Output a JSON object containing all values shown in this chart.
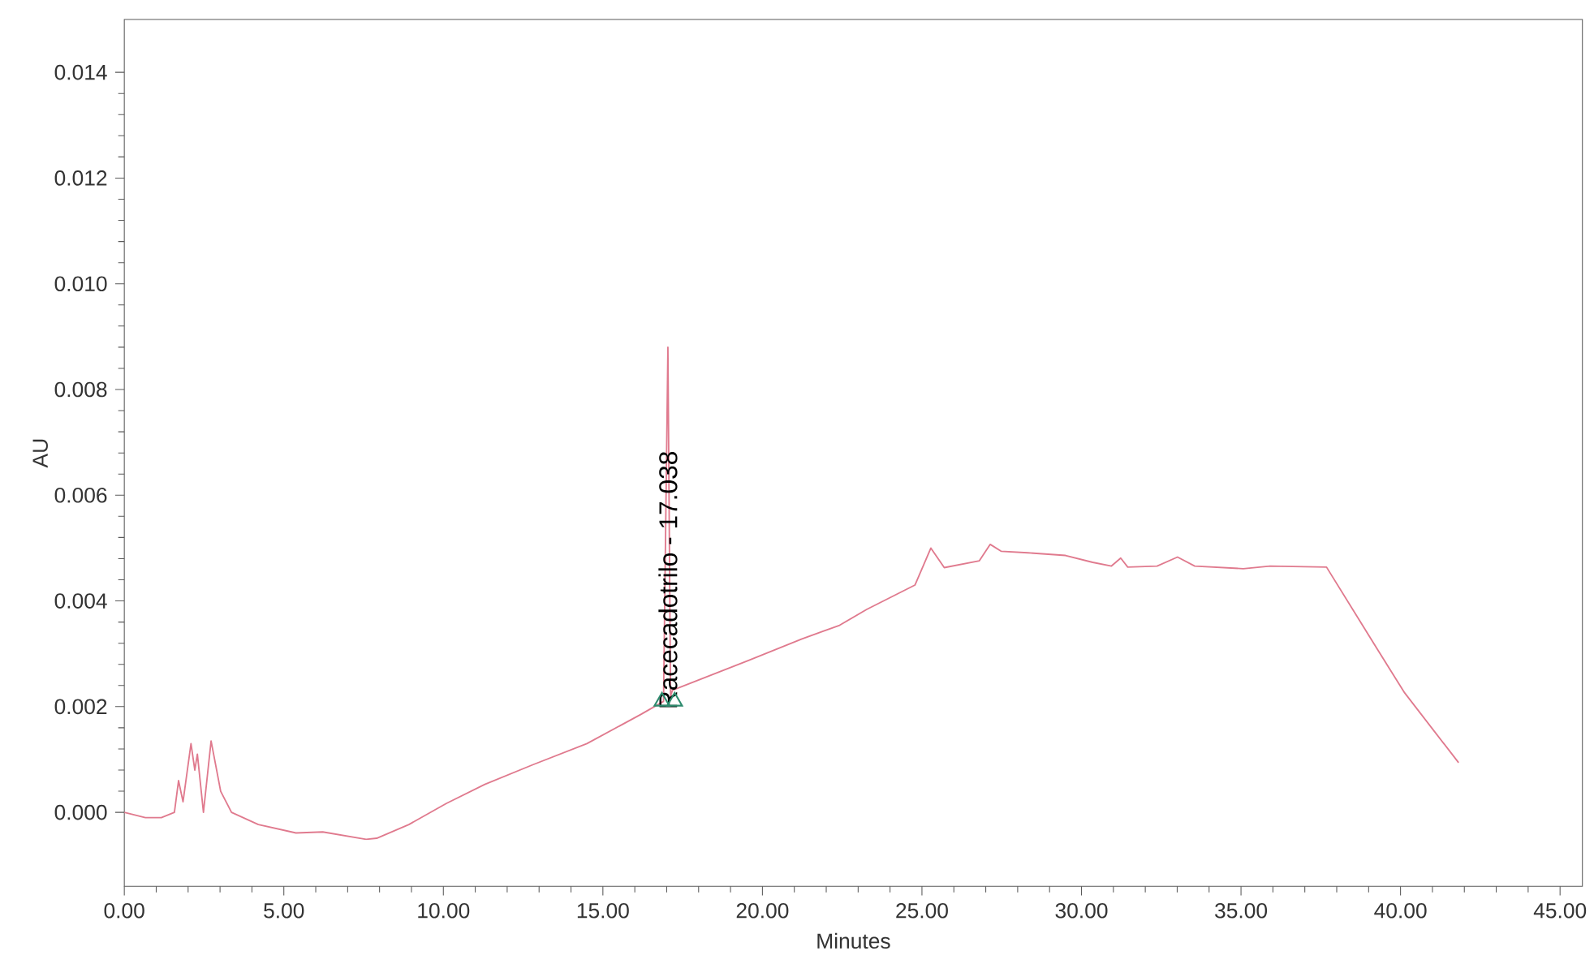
{
  "chart_data": {
    "type": "line",
    "xlabel": "Minutes",
    "ylabel": "AU",
    "xlim": [
      0,
      45.7
    ],
    "ylim": [
      -0.0014,
      0.015
    ],
    "xticks": [
      {
        "value": 0,
        "label": "0.00"
      },
      {
        "value": 5,
        "label": "5.00"
      },
      {
        "value": 10,
        "label": "10.00"
      },
      {
        "value": 15,
        "label": "15.00"
      },
      {
        "value": 20,
        "label": "20.00"
      },
      {
        "value": 25,
        "label": "25.00"
      },
      {
        "value": 30,
        "label": "30.00"
      },
      {
        "value": 35,
        "label": "35.00"
      },
      {
        "value": 40,
        "label": "40.00"
      },
      {
        "value": 45,
        "label": "45.00"
      }
    ],
    "yticks": [
      {
        "value": 0,
        "label": "0.000"
      },
      {
        "value": 0.002,
        "label": "0.002"
      },
      {
        "value": 0.004,
        "label": "0.004"
      },
      {
        "value": 0.006,
        "label": "0.006"
      },
      {
        "value": 0.008,
        "label": "0.008"
      },
      {
        "value": 0.01,
        "label": "0.010"
      },
      {
        "value": 0.012,
        "label": "0.012"
      },
      {
        "value": 0.014,
        "label": "0.014"
      }
    ],
    "grid": false,
    "series": [
      {
        "color": "#e07a8e",
        "x": [
          0,
          0.66,
          1.16,
          1.57,
          1.7,
          1.84,
          2.09,
          2.21,
          2.29,
          2.48,
          2.72,
          3.02,
          3.36,
          4.2,
          5.38,
          6.22,
          7.58,
          7.91,
          8.92,
          10.1,
          11.3,
          12.8,
          14.5,
          16.18,
          16.9,
          17.038,
          17.12,
          17.18,
          19.55,
          21.24,
          22.42,
          23.27,
          24.78,
          25.28,
          25.7,
          26.8,
          27.14,
          27.48,
          28.32,
          29.5,
          30.35,
          30.94,
          31.23,
          31.45,
          32.37,
          33.01,
          33.55,
          35.07,
          35.91,
          37.68,
          39.28,
          40.13,
          41.82
        ],
        "values": [
          0,
          -0.0001,
          -0.0001,
          0,
          0.0006,
          0.0002,
          0.0013,
          0.0008,
          0.0011,
          0,
          0.00135,
          0.0004,
          0,
          -0.00023,
          -0.00039,
          -0.00037,
          -0.00051,
          -0.00049,
          -0.00023,
          0.00017,
          0.00053,
          0.0009,
          0.0013,
          0.00185,
          0.0021,
          0.0088,
          0.0022,
          0.00231,
          0.00287,
          0.00328,
          0.00354,
          0.00384,
          0.0043,
          0.005,
          0.00463,
          0.00476,
          0.00507,
          0.00494,
          0.00491,
          0.00486,
          0.00473,
          0.00466,
          0.00481,
          0.00464,
          0.00466,
          0.00483,
          0.00466,
          0.00461,
          0.00466,
          0.00464,
          0.00308,
          0.00226,
          0.00094
        ]
      },
      {
        "type": "scatter",
        "marker": "triangle",
        "color": "#2e8b6e",
        "x": [
          16.85,
          17.25
        ],
        "values": [
          0.0021,
          0.0021
        ]
      }
    ],
    "annotations": [
      {
        "text": "Racecadotrilo - 17.038",
        "x": 17.038,
        "y": 0.0019
      }
    ]
  }
}
